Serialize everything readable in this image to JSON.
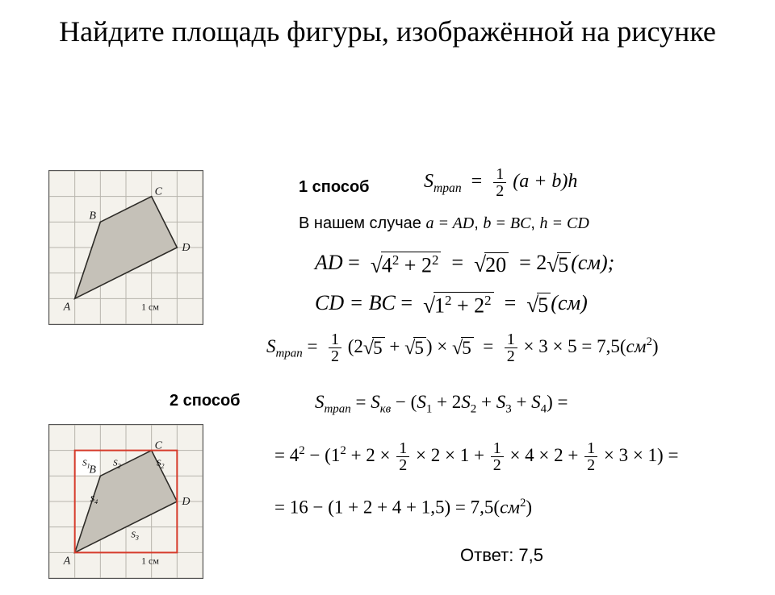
{
  "title": "Найдите площадь фигуры, изображённой на рисунке",
  "method1_label": "1  способ",
  "method2_label": "2  способ",
  "case_text_prefix": "В нашем  случае ",
  "case_a": "a = AD",
  "case_b": "b = BC",
  "case_h": "h = CD",
  "answer_label": "Ответ:  7,5",
  "figure": {
    "grid_cells": 6,
    "A": "A",
    "B": "B",
    "C": "C",
    "D": "D",
    "unit": "1 см",
    "regions": {
      "s1": "S1",
      "s2": "S2",
      "s3": "S3",
      "s4": "S4"
    },
    "poly_points_cell": [
      [
        1,
        5
      ],
      [
        2,
        2
      ],
      [
        4,
        1
      ],
      [
        5,
        3
      ]
    ],
    "outline_square_cell": [
      [
        1,
        1
      ],
      [
        5,
        1
      ],
      [
        5,
        5
      ],
      [
        1,
        5
      ]
    ],
    "colors": {
      "bg": "#f4f2ec",
      "grid": "#b7b4ac",
      "shape_fill": "#c5c1b8",
      "shape_stroke": "#2e2c28",
      "outline": "#d63b2b"
    }
  },
  "formulas": {
    "trap_def_lhs": "S",
    "trap_def_sub": "трап",
    "trap_def_rhs": "(a + b)h",
    "AD_lhs": "AD",
    "AD_mid": "4² + 2²",
    "AD_r20": "20",
    "AD_final": "2",
    "AD_r5": "5",
    "AD_unit": "(см);",
    "CD_lhs": "CD = BC",
    "CD_mid": "1² + 2²",
    "CD_r5": "5",
    "CD_unit": "(см)",
    "trap_num_mid": "(2√5 + √5) × √5",
    "trap_num_3x5": "× 3 × 5 = 7,5",
    "trap_num_unit": "(см²)",
    "m2_line1_lhs": "S",
    "m2_kv": "кв",
    "m2_paren": "(S₁ + 2S₂ + S₃ + S₄)",
    "m2_line2_lhs": "= 4² − (1² + 2 ×",
    "m2_line2_mid1": "× 2 × 1 +",
    "m2_line2_mid2": "× 4 × 2 +",
    "m2_line2_end": "× 3 × 1) =",
    "m2_line3": "= 16 − (1 + 2 + 4 + 1,5) = 7,5(см²)"
  },
  "layout": {
    "title_fontsize": 36,
    "label_fontsize": 20,
    "formula_fontsize": 24,
    "answer_fontsize": 22,
    "fig1_size": 190,
    "fig2_size": 190
  }
}
